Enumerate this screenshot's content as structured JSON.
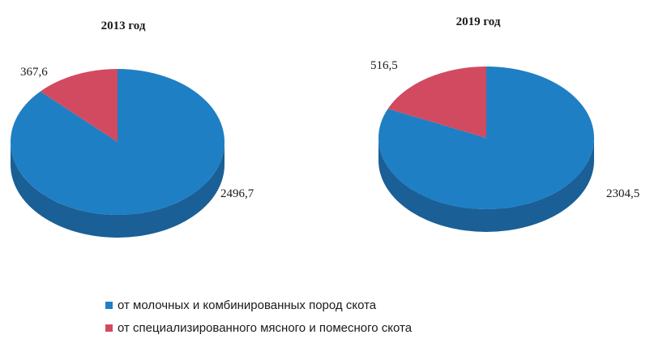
{
  "chart_data": [
    {
      "type": "pie",
      "title": "2013 год",
      "categories": [
        "от молочных и комбинированных пород скота",
        "от специализированного мясного и помесного скота"
      ],
      "values": [
        2496.7,
        367.6
      ],
      "value_labels": [
        "2496,7",
        "367,6"
      ]
    },
    {
      "type": "pie",
      "title": "2019 год",
      "categories": [
        "от молочных и комбинированных пород скота",
        "от специализированного мясного и помесного скота"
      ],
      "values": [
        2304.5,
        516.5
      ],
      "value_labels": [
        "2304,5",
        "516,5"
      ]
    }
  ],
  "legend": {
    "placement": "bottom",
    "items": [
      {
        "label": "от молочных и комбинированных пород скота",
        "color": "#1f7fc4"
      },
      {
        "label": "от специализированного мясного и помесного скота",
        "color": "#d24a5f"
      }
    ]
  },
  "colors": {
    "dairy_top": "#1f7fc4",
    "dairy_side": "#1a5f96",
    "beef_top": "#d24a5f",
    "beef_side": "#9c3244"
  }
}
